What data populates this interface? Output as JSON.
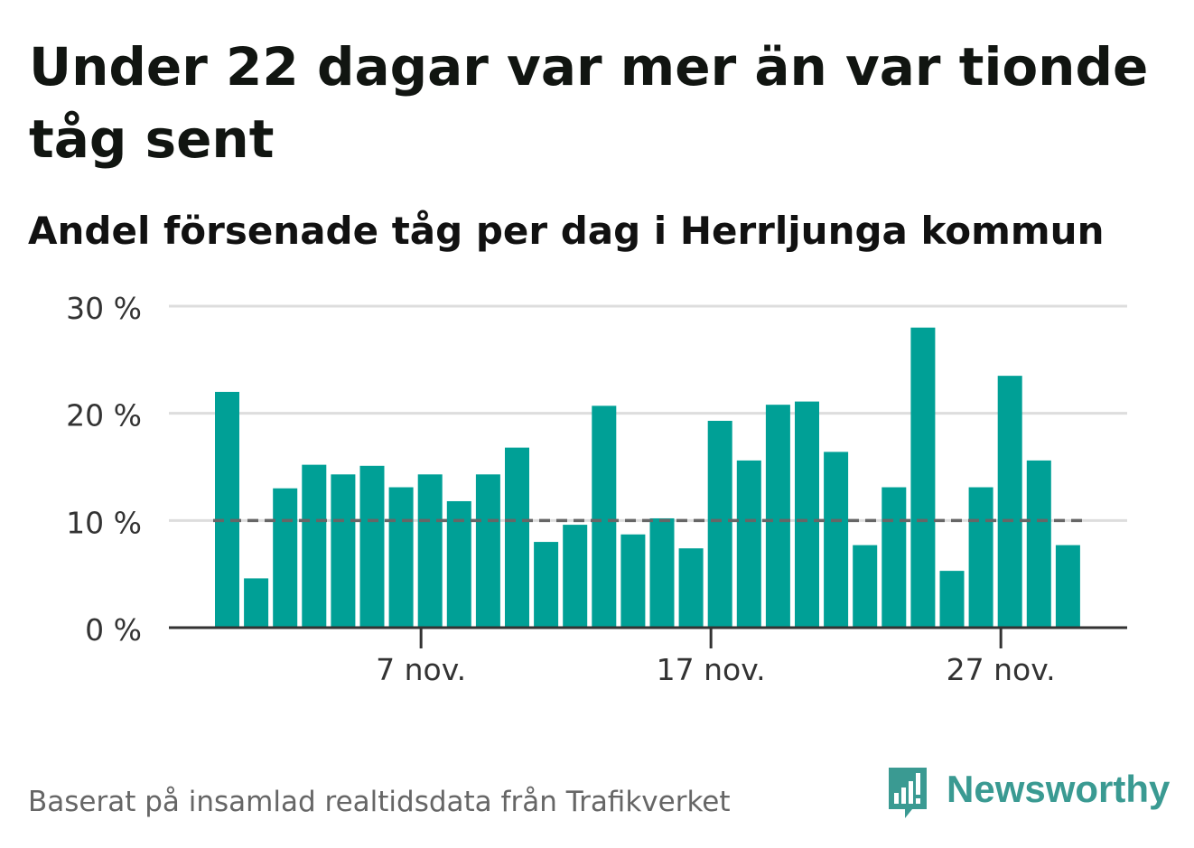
{
  "title": "Under 22 dagar var mer än var tionde tåg sent",
  "subtitle": "Andel försenade tåg per dag i Herrljunga kommun",
  "footer": "Baserat på insamlad realtidsdata från Trafikverket",
  "brand": {
    "name": "Newsworthy",
    "logo_icon": "bar-chart-speech-bubble-icon"
  },
  "colors": {
    "bar": "#00a096",
    "grid": "#dddddd",
    "axis": "#333333",
    "threshold": "#666666",
    "brand": "#3a9a92"
  },
  "chart_data": {
    "type": "bar",
    "title": "",
    "xlabel": "",
    "ylabel": "",
    "ylim": [
      0,
      30
    ],
    "y_ticks": [
      0,
      10,
      20,
      30
    ],
    "y_tick_labels": [
      "0 %",
      "10 %",
      "20 %",
      "30 %"
    ],
    "categories": [
      "1 nov.",
      "2 nov.",
      "3 nov.",
      "4 nov.",
      "5 nov.",
      "6 nov.",
      "7 nov.",
      "8 nov.",
      "9 nov.",
      "10 nov.",
      "11 nov.",
      "12 nov.",
      "13 nov.",
      "14 nov.",
      "15 nov.",
      "16 nov.",
      "17 nov.",
      "18 nov.",
      "19 nov.",
      "20 nov.",
      "21 nov.",
      "22 nov.",
      "23 nov.",
      "24 nov.",
      "25 nov.",
      "26 nov.",
      "27 nov.",
      "28 nov.",
      "29 nov.",
      "30 nov."
    ],
    "x_tick_labels": [
      {
        "category": "7 nov.",
        "label": "7 nov."
      },
      {
        "category": "17 nov.",
        "label": "17 nov."
      },
      {
        "category": "27 nov.",
        "label": "27 nov."
      }
    ],
    "values": [
      22.0,
      4.6,
      13.0,
      15.2,
      14.3,
      15.1,
      13.1,
      14.3,
      11.8,
      14.3,
      16.8,
      8.0,
      9.6,
      20.7,
      8.7,
      10.2,
      7.4,
      19.3,
      15.6,
      20.8,
      21.1,
      16.4,
      7.7,
      13.1,
      28.0,
      5.3,
      13.1,
      23.5,
      15.6,
      7.7
    ],
    "threshold": 10,
    "grid": true,
    "legend": "none"
  }
}
